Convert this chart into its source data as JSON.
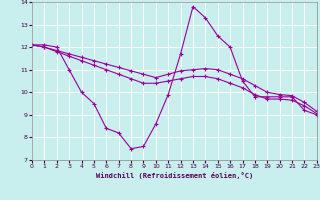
{
  "xlabel": "Windchill (Refroidissement éolien,°C)",
  "xlim": [
    0,
    23
  ],
  "ylim": [
    7,
    14
  ],
  "yticks": [
    7,
    8,
    9,
    10,
    11,
    12,
    13,
    14
  ],
  "xticks": [
    0,
    1,
    2,
    3,
    4,
    5,
    6,
    7,
    8,
    9,
    10,
    11,
    12,
    13,
    14,
    15,
    16,
    17,
    18,
    19,
    20,
    21,
    22,
    23
  ],
  "background_color": "#c8eeee",
  "line_color": "#990099",
  "grid_color": "#aadddd",
  "lines": [
    {
      "x": [
        0,
        1,
        2,
        3,
        4,
        5,
        6,
        7,
        8,
        9,
        10,
        11,
        12,
        13,
        14,
        15,
        16,
        17,
        18,
        19,
        20,
        21,
        22,
        23
      ],
      "y": [
        12.1,
        12.1,
        12.0,
        11.0,
        10.0,
        9.5,
        8.4,
        8.2,
        7.5,
        7.6,
        8.6,
        9.9,
        11.7,
        13.8,
        13.3,
        12.5,
        12.0,
        10.5,
        9.8,
        9.8,
        9.8,
        9.8,
        9.2,
        9.0
      ]
    },
    {
      "x": [
        0,
        1,
        2,
        3,
        4,
        5,
        6,
        7,
        8,
        9,
        10,
        11,
        12,
        13,
        14,
        15,
        16,
        17,
        18,
        19,
        20,
        21,
        22,
        23
      ],
      "y": [
        12.1,
        12.0,
        11.85,
        11.7,
        11.55,
        11.4,
        11.25,
        11.1,
        10.95,
        10.8,
        10.65,
        10.8,
        10.95,
        11.0,
        11.05,
        11.0,
        10.8,
        10.6,
        10.3,
        10.0,
        9.9,
        9.85,
        9.55,
        9.15
      ]
    },
    {
      "x": [
        0,
        1,
        2,
        3,
        4,
        5,
        6,
        7,
        8,
        9,
        10,
        11,
        12,
        13,
        14,
        15,
        16,
        17,
        18,
        19,
        20,
        21,
        22,
        23
      ],
      "y": [
        12.1,
        12.0,
        11.8,
        11.6,
        11.4,
        11.2,
        11.0,
        10.8,
        10.6,
        10.4,
        10.4,
        10.5,
        10.6,
        10.7,
        10.7,
        10.6,
        10.4,
        10.2,
        9.9,
        9.7,
        9.7,
        9.65,
        9.4,
        9.05
      ]
    }
  ]
}
